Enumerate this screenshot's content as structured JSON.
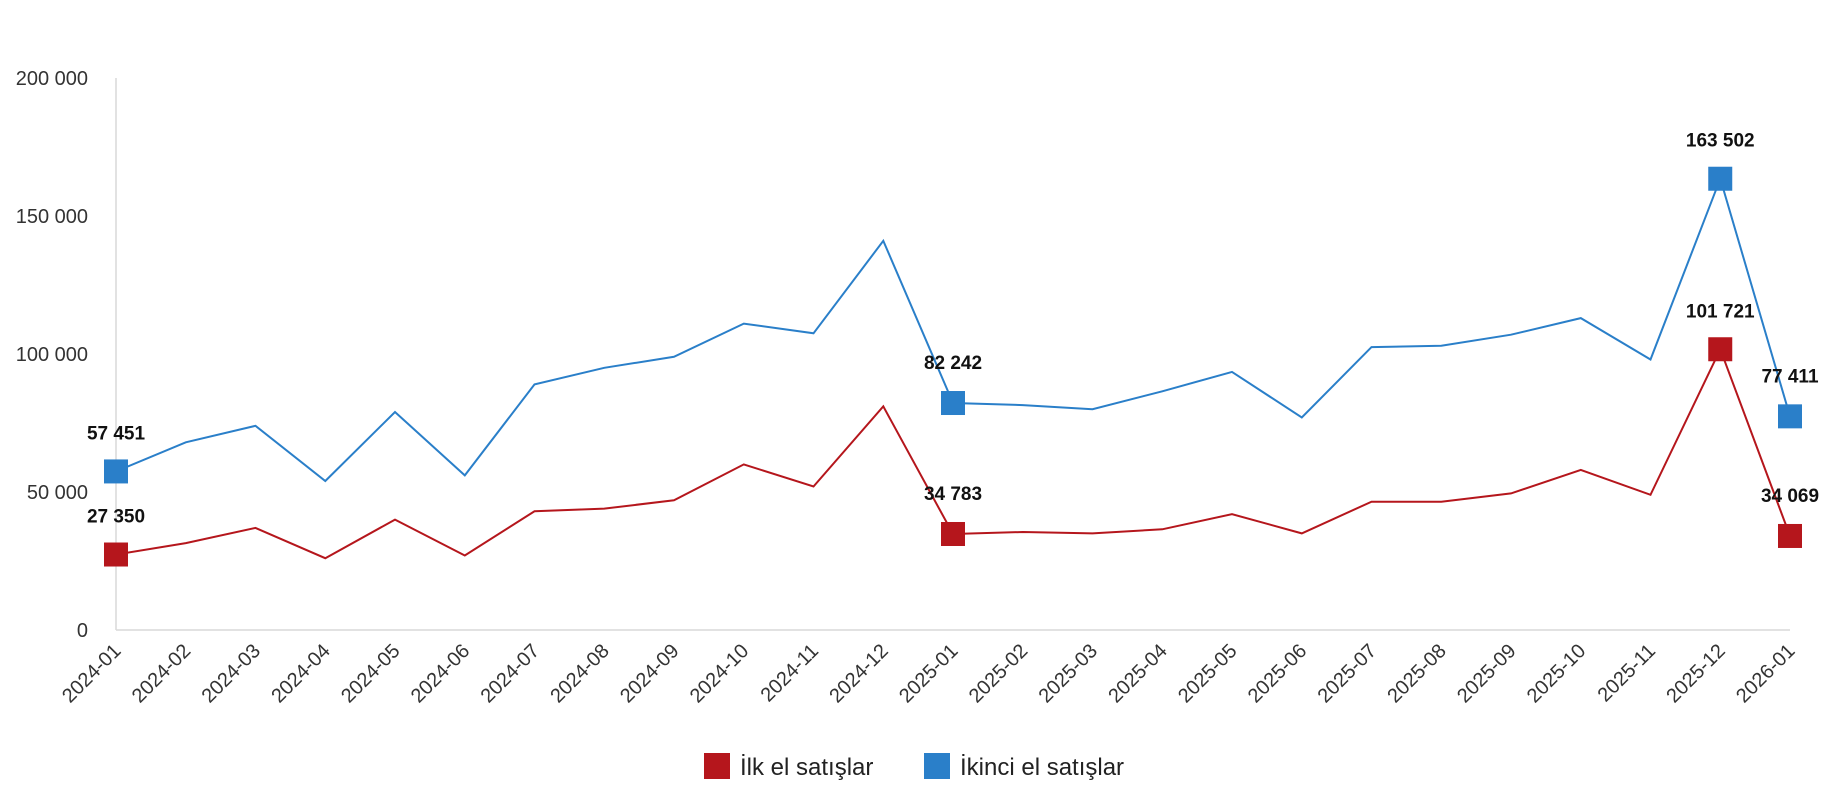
{
  "chart_data": {
    "type": "line",
    "title": "",
    "xlabel": "",
    "ylabel": "",
    "ylim": [
      0,
      200000
    ],
    "yticks": [
      0,
      50000,
      100000,
      150000,
      200000
    ],
    "ytick_labels": [
      "0",
      "50 000",
      "100 000",
      "150 000",
      "200 000"
    ],
    "grid": false,
    "legend_position": "bottom",
    "categories": [
      "2024-01",
      "2024-02",
      "2024-03",
      "2024-04",
      "2024-05",
      "2024-06",
      "2024-07",
      "2024-08",
      "2024-09",
      "2024-10",
      "2024-11",
      "2024-12",
      "2025-01",
      "2025-02",
      "2025-03",
      "2025-04",
      "2025-05",
      "2025-06",
      "2025-07",
      "2025-08",
      "2025-09",
      "2025-10",
      "2025-11",
      "2025-12",
      "2026-01"
    ],
    "series": [
      {
        "name": "İlk el satışlar",
        "color": "#b5161c",
        "values": [
          27350,
          31500,
          37000,
          26000,
          40000,
          27000,
          43000,
          44000,
          47000,
          60000,
          52000,
          81000,
          34783,
          35500,
          35000,
          36500,
          42000,
          35000,
          46500,
          46500,
          49500,
          58000,
          49000,
          101721,
          34069
        ],
        "labeled_points": [
          {
            "index": 0,
            "label": "27 350"
          },
          {
            "index": 12,
            "label": "34 783"
          },
          {
            "index": 23,
            "label": "101 721"
          },
          {
            "index": 24,
            "label": "34 069"
          }
        ]
      },
      {
        "name": "İkinci el satışlar",
        "color": "#2a7fc9",
        "values": [
          57451,
          68000,
          74000,
          54000,
          79000,
          56000,
          89000,
          95000,
          99000,
          111000,
          107500,
          141000,
          82242,
          81500,
          80000,
          86500,
          93500,
          77000,
          102500,
          103000,
          107000,
          113000,
          98000,
          163502,
          77411
        ],
        "labeled_points": [
          {
            "index": 0,
            "label": "57 451"
          },
          {
            "index": 12,
            "label": "82 242"
          },
          {
            "index": 23,
            "label": "163 502"
          },
          {
            "index": 24,
            "label": "77 411"
          }
        ]
      }
    ]
  }
}
